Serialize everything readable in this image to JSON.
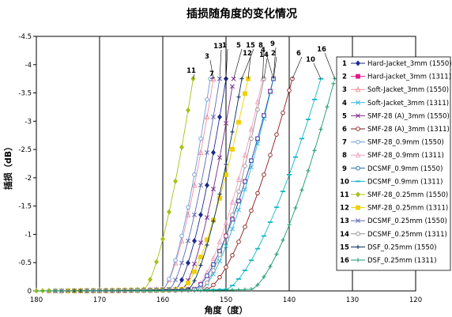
{
  "chart_data": {
    "type": "line",
    "title": "插损随角度的变化情况",
    "xlabel": "角度（度）",
    "ylabel": "插损（dB）",
    "xlim": [
      180,
      120
    ],
    "ylim": [
      0,
      -4.5
    ],
    "x_ticks": [
      180,
      170,
      160,
      150,
      140,
      130,
      120
    ],
    "y_ticks": [
      0,
      -0.5,
      -1,
      -1.5,
      -2,
      -2.5,
      -3,
      -3.5,
      -4,
      -4.5
    ],
    "grid": true,
    "legend_position": "right",
    "series": [
      {
        "id": "1",
        "name": "Hard-Jacket_3mm (1550)",
        "color": "#1f2a8c",
        "marker": "diamond",
        "x0": 158,
        "x1": 150
      },
      {
        "id": "2",
        "name": "Hard-jacket_3mm (1311)",
        "color": "#e01a8a",
        "marker": "square",
        "x0": 155,
        "x1": 142.5
      },
      {
        "id": "3",
        "name": "Soft-Jacket_3mm (1550)",
        "color": "#f0909a",
        "marker": "triangle",
        "x0": 160,
        "x1": 152
      },
      {
        "id": "4",
        "name": "Soft-Jacket_3mm (1311)",
        "color": "#33b8e0",
        "marker": "x",
        "x0": 154,
        "x1": 142.5
      },
      {
        "id": "5",
        "name": "SMF-28 (A)_3mm (1550)",
        "color": "#7a2a8a",
        "marker": "x",
        "x0": 157,
        "x1": 148.8
      },
      {
        "id": "6",
        "name": "SMF-28 (A)_3mm (1311)",
        "color": "#8a1a1a",
        "marker": "circle",
        "x0": 153,
        "x1": 139.5
      },
      {
        "id": "7",
        "name": "SMF-28_0.9mm (1550)",
        "color": "#6a9ad8",
        "marker": "circle",
        "x0": 160,
        "x1": 152.5
      },
      {
        "id": "8",
        "name": "SMF-28_0.9mm (1311)",
        "color": "#f0a0c0",
        "marker": "triangle",
        "x0": 155,
        "x1": 144.2
      },
      {
        "id": "9",
        "name": "DCSMF_0.9mm (1550)",
        "color": "#1a6ab8",
        "marker": "circle",
        "x0": 155,
        "x1": 142.5
      },
      {
        "id": "10",
        "name": "DCSMF_0.9mm (1311)",
        "color": "#12b8c8",
        "marker": "dash",
        "x0": 150,
        "x1": 135
      },
      {
        "id": "11",
        "name": "SMF-28_0.25mm (1550)",
        "color": "#a8c018",
        "marker": "diamond",
        "x0": 163,
        "x1": 155.2
      },
      {
        "id": "12",
        "name": "SMF-28_0.25mm (1311)",
        "color": "#f0d000",
        "marker": "square",
        "x0": 157,
        "x1": 146.5
      },
      {
        "id": "13",
        "name": "DCSMF_0.25mm (1550)",
        "color": "#606ab0",
        "marker": "x",
        "x0": 159,
        "x1": 151
      },
      {
        "id": "14",
        "name": "DCSMF_0.25mm (1311)",
        "color": "#909090",
        "marker": "circle",
        "x0": 154,
        "x1": 144
      },
      {
        "id": "15",
        "name": "DSF_0.25mm (1550)",
        "color": "#0a2a5a",
        "marker": "plus",
        "x0": 156,
        "x1": 147.5
      },
      {
        "id": "16",
        "name": "DSF_0.25mm (1311)",
        "color": "#1a9a6a",
        "marker": "plus",
        "x0": 146,
        "x1": 132.8
      }
    ]
  }
}
